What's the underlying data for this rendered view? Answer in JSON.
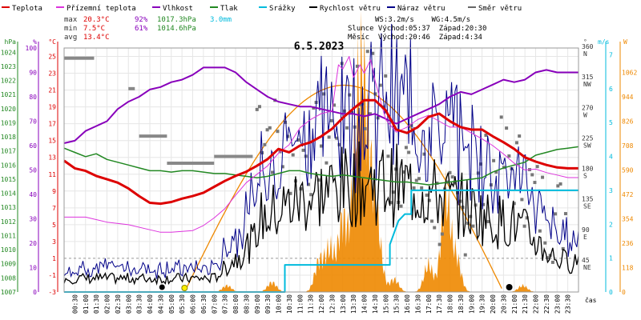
{
  "chart_data": {
    "type": "line",
    "title": "6.5.2023",
    "legend": [
      {
        "label": "Teplota",
        "color": "#dd0000"
      },
      {
        "label": "Přízemní teplota",
        "color": "#dd33dd"
      },
      {
        "label": "Vlhkost",
        "color": "#8800bb"
      },
      {
        "label": "Tlak",
        "color": "#228822"
      },
      {
        "label": "Srážky",
        "color": "#00bbdd"
      },
      {
        "label": "Rychlost větru",
        "color": "#000000"
      },
      {
        "label": "Náraz větru",
        "color": "#000088"
      },
      {
        "label": "Směr větru",
        "color": "#666666"
      }
    ],
    "stats": {
      "max": {
        "label": "max",
        "temp": "20.3°C",
        "hum": "92%",
        "press": "1017.3hPa",
        "rain": "3.0mm"
      },
      "min": {
        "label": "min",
        "temp": "7.5°C",
        "hum": "61%",
        "press": "1014.6hPa"
      },
      "avg": {
        "label": "avg",
        "temp": "13.4°C"
      }
    },
    "wind_info": "WS:3.2m/s    WG:4.5m/s",
    "sun_info": "Slunce Východ:05:37  Západ:20:30",
    "moon_info": "Měsíc  Východ:20:46  Západ:4:34",
    "axis_units": {
      "hpa": "hPa",
      "pct": "%",
      "temp": "°C",
      "deg": "°",
      "ms": "m/s",
      "w": "W",
      "x": "čas"
    },
    "ticks": {
      "hpa": [
        "1024",
        "1023",
        "1022",
        "1021",
        "1020",
        "1019",
        "1018",
        "1017",
        "1016",
        "1015",
        "1014",
        "1013",
        "1012",
        "1011",
        "1010",
        "1009",
        "1008",
        "1007"
      ],
      "pct": [
        "100",
        "90",
        "80",
        "70",
        "60",
        "50",
        "40",
        "30",
        "20",
        "10",
        "0"
      ],
      "temp": [
        "25",
        "23",
        "21",
        "19",
        "17",
        "15",
        "13",
        "11",
        "9",
        "7",
        "5",
        "3",
        "1",
        "-1",
        "-3"
      ],
      "dir": [
        {
          "v": 360,
          "d": "N"
        },
        {
          "v": 315,
          "d": "NW"
        },
        {
          "v": 270,
          "d": "W"
        },
        {
          "v": 225,
          "d": "SW"
        },
        {
          "v": 180,
          "d": "S"
        },
        {
          "v": 135,
          "d": "SE"
        },
        {
          "v": 90,
          "d": "E"
        },
        {
          "v": 45,
          "d": "NE"
        }
      ],
      "ms": [
        "7",
        "6",
        "5",
        "4",
        "3",
        "2",
        "1",
        "0"
      ],
      "w": [
        "1062",
        "944",
        "826",
        "708",
        "590",
        "472",
        "354",
        "236",
        "118",
        "0"
      ],
      "time": [
        "00:30",
        "01:00",
        "01:30",
        "02:00",
        "02:30",
        "03:00",
        "03:30",
        "04:00",
        "04:30",
        "05:00",
        "05:30",
        "06:00",
        "06:30",
        "07:00",
        "07:30",
        "08:00",
        "08:30",
        "09:00",
        "09:30",
        "10:00",
        "10:30",
        "11:00",
        "11:30",
        "12:00",
        "12:30",
        "13:00",
        "13:30",
        "14:00",
        "14:30",
        "15:00",
        "15:30",
        "16:00",
        "16:30",
        "17:00",
        "17:30",
        "18:00",
        "18:30",
        "19:00",
        "19:30",
        "20:00",
        "20:30",
        "21:00",
        "21:30",
        "22:00",
        "22:30",
        "23:00",
        "23:30"
      ]
    },
    "axis_ranges": {
      "hours": [
        0,
        24
      ],
      "temp_c": [
        -3,
        26
      ],
      "humidity_pct": [
        0,
        100
      ],
      "pressure_hpa": [
        1007,
        1024.3
      ],
      "wind_ms": [
        0,
        7.2
      ],
      "solar_w": [
        0,
        1180
      ],
      "direction_deg": [
        0,
        360
      ]
    },
    "series": [
      {
        "name": "Teplota",
        "unit": "°C",
        "points": [
          [
            0,
            12.6
          ],
          [
            0.5,
            11.7
          ],
          [
            1,
            11.4
          ],
          [
            1.5,
            10.8
          ],
          [
            2,
            10.4
          ],
          [
            2.5,
            10.0
          ],
          [
            3,
            9.3
          ],
          [
            3.5,
            8.4
          ],
          [
            4,
            7.6
          ],
          [
            4.5,
            7.5
          ],
          [
            5,
            7.7
          ],
          [
            5.5,
            8.1
          ],
          [
            6,
            8.4
          ],
          [
            6.5,
            8.8
          ],
          [
            7,
            9.5
          ],
          [
            7.5,
            10.2
          ],
          [
            8,
            10.8
          ],
          [
            8.5,
            11.3
          ],
          [
            9,
            12.0
          ],
          [
            9.5,
            12.8
          ],
          [
            10,
            14.0
          ],
          [
            10.5,
            13.6
          ],
          [
            11,
            14.4
          ],
          [
            11.5,
            14.8
          ],
          [
            12,
            15.5
          ],
          [
            12.5,
            16.4
          ],
          [
            13,
            17.7
          ],
          [
            13.5,
            18.8
          ],
          [
            14,
            19.8
          ],
          [
            14.5,
            19.8
          ],
          [
            15,
            18.6
          ],
          [
            15.5,
            16.3
          ],
          [
            16,
            15.9
          ],
          [
            16.5,
            16.6
          ],
          [
            17,
            17.8
          ],
          [
            17.5,
            18.2
          ],
          [
            18,
            17.3
          ],
          [
            18.5,
            16.6
          ],
          [
            19,
            16.3
          ],
          [
            19.5,
            16.3
          ],
          [
            20,
            15.5
          ],
          [
            20.5,
            14.8
          ],
          [
            21,
            14.0
          ],
          [
            21.5,
            13.0
          ],
          [
            22,
            12.5
          ],
          [
            22.5,
            12.1
          ],
          [
            23,
            11.8
          ],
          [
            23.5,
            11.7
          ],
          [
            24,
            11.7
          ]
        ]
      },
      {
        "name": "Přízemní teplota",
        "unit": "°C",
        "points": [
          [
            0,
            5.9
          ],
          [
            1,
            5.9
          ],
          [
            2,
            5.3
          ],
          [
            3,
            5.0
          ],
          [
            4,
            4.4
          ],
          [
            4.5,
            4.1
          ],
          [
            5,
            4.1
          ],
          [
            6,
            4.3
          ],
          [
            6.5,
            4.9
          ],
          [
            7,
            5.8
          ],
          [
            7.5,
            6.9
          ],
          [
            8,
            8.5
          ],
          [
            8.5,
            10.0
          ],
          [
            9,
            11.0
          ],
          [
            9.5,
            12.0
          ],
          [
            10,
            13.5
          ],
          [
            10.5,
            14.5
          ],
          [
            11,
            16.5
          ],
          [
            11.5,
            17.5
          ],
          [
            12,
            18.2
          ],
          [
            12.5,
            18.5
          ],
          [
            12.8,
            24.0
          ],
          [
            13,
            23.5
          ],
          [
            13.3,
            25.0
          ],
          [
            13.5,
            22.5
          ],
          [
            13.8,
            24.0
          ],
          [
            14,
            23.0
          ],
          [
            14.3,
            24.6
          ],
          [
            14.5,
            22.2
          ],
          [
            15,
            17.5
          ],
          [
            15.5,
            16.0
          ],
          [
            16,
            16.6
          ],
          [
            16.5,
            17.5
          ],
          [
            17,
            18.0
          ],
          [
            17.5,
            17.3
          ],
          [
            18,
            16.6
          ],
          [
            18.5,
            16.6
          ],
          [
            19,
            15.9
          ],
          [
            19.5,
            15.2
          ],
          [
            20,
            14.4
          ],
          [
            20.5,
            13.4
          ],
          [
            21,
            12.3
          ],
          [
            21.5,
            11.5
          ],
          [
            22,
            11.6
          ],
          [
            22.5,
            11.2
          ],
          [
            23,
            10.9
          ],
          [
            23.5,
            10.6
          ],
          [
            24,
            10.6
          ]
        ]
      },
      {
        "name": "Vlhkost",
        "unit": "%",
        "points": [
          [
            0,
            61
          ],
          [
            0.5,
            62
          ],
          [
            1,
            66
          ],
          [
            1.5,
            68
          ],
          [
            2,
            70
          ],
          [
            2.5,
            75
          ],
          [
            3,
            78
          ],
          [
            3.5,
            80
          ],
          [
            4,
            83
          ],
          [
            4.5,
            84
          ],
          [
            5,
            86
          ],
          [
            5.5,
            87
          ],
          [
            6,
            89
          ],
          [
            6.5,
            92
          ],
          [
            7,
            92
          ],
          [
            7.5,
            92
          ],
          [
            8,
            90
          ],
          [
            8.5,
            86
          ],
          [
            9,
            83
          ],
          [
            9.5,
            80
          ],
          [
            10,
            78
          ],
          [
            10.5,
            77
          ],
          [
            11,
            76
          ],
          [
            11.5,
            76
          ],
          [
            12,
            75
          ],
          [
            12.5,
            74
          ],
          [
            13,
            73
          ],
          [
            13.5,
            73
          ],
          [
            14,
            72
          ],
          [
            14.5,
            73
          ],
          [
            15,
            71
          ],
          [
            15.5,
            69
          ],
          [
            16,
            71
          ],
          [
            16.5,
            73
          ],
          [
            17,
            75
          ],
          [
            17.5,
            77
          ],
          [
            18,
            80
          ],
          [
            18.5,
            82
          ],
          [
            19,
            81
          ],
          [
            19.5,
            83
          ],
          [
            20,
            85
          ],
          [
            20.5,
            87
          ],
          [
            21,
            86
          ],
          [
            21.5,
            87
          ],
          [
            22,
            90
          ],
          [
            22.5,
            91
          ],
          [
            23,
            90
          ],
          [
            23.5,
            90
          ],
          [
            24,
            90
          ]
        ]
      },
      {
        "name": "Tlak",
        "unit": "hPa",
        "points": [
          [
            0,
            1017.2
          ],
          [
            0.5,
            1016.9
          ],
          [
            1,
            1016.6
          ],
          [
            1.5,
            1016.8
          ],
          [
            2,
            1016.4
          ],
          [
            2.5,
            1016.2
          ],
          [
            3,
            1016.0
          ],
          [
            3.5,
            1015.8
          ],
          [
            4,
            1015.6
          ],
          [
            4.5,
            1015.6
          ],
          [
            5,
            1015.5
          ],
          [
            5.5,
            1015.6
          ],
          [
            6,
            1015.6
          ],
          [
            6.5,
            1015.5
          ],
          [
            7,
            1015.4
          ],
          [
            7.5,
            1015.4
          ],
          [
            8,
            1015.3
          ],
          [
            8.5,
            1015.2
          ],
          [
            9,
            1015.1
          ],
          [
            9.5,
            1015.2
          ],
          [
            10,
            1015.4
          ],
          [
            10.5,
            1015.6
          ],
          [
            11,
            1015.6
          ],
          [
            11.5,
            1015.4
          ],
          [
            12,
            1015.3
          ],
          [
            12.5,
            1015.2
          ],
          [
            13,
            1015.3
          ],
          [
            13.5,
            1015.2
          ],
          [
            14,
            1015.1
          ],
          [
            14.5,
            1015.0
          ],
          [
            15,
            1014.9
          ],
          [
            15.5,
            1014.8
          ],
          [
            16,
            1014.8
          ],
          [
            16.5,
            1014.7
          ],
          [
            17,
            1014.6
          ],
          [
            17.5,
            1014.7
          ],
          [
            18,
            1014.8
          ],
          [
            18.5,
            1014.9
          ],
          [
            19,
            1015.0
          ],
          [
            19.5,
            1015.1
          ],
          [
            20,
            1015.5
          ],
          [
            20.5,
            1015.8
          ],
          [
            21,
            1016.0
          ],
          [
            21.5,
            1016.2
          ],
          [
            22,
            1016.7
          ],
          [
            22.5,
            1016.9
          ],
          [
            23,
            1017.1
          ],
          [
            23.5,
            1017.2
          ],
          [
            24,
            1017.3
          ]
        ]
      },
      {
        "name": "Srážky",
        "unit": "mm",
        "points": [
          [
            0,
            0
          ],
          [
            10.3,
            0
          ],
          [
            10.3,
            0.8
          ],
          [
            15.2,
            0.8
          ],
          [
            15.2,
            1.4
          ],
          [
            15.6,
            2.1
          ],
          [
            15.9,
            2.3
          ],
          [
            16.2,
            2.3
          ],
          [
            16.2,
            3.0
          ],
          [
            24,
            3.0
          ]
        ]
      }
    ]
  }
}
